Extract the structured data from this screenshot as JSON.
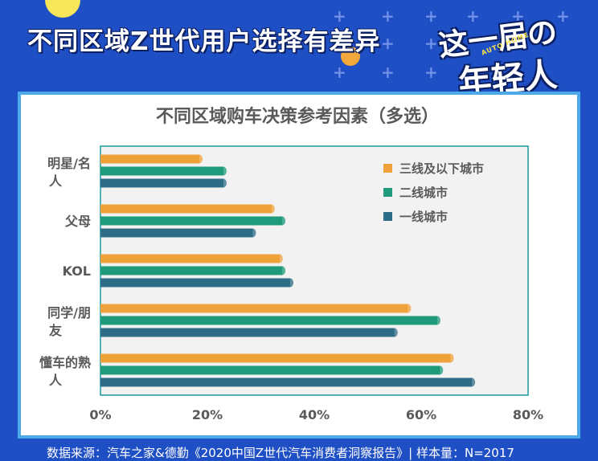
{
  "headline": "不同区域Z世代用户选择有差异",
  "badge": {
    "line1": "这一届の",
    "line2": "年轻人",
    "brand": "AUTO HOME"
  },
  "footer_note": "数据来源：汽车之家&德勤《2020中国Z世代汽车消费者洞察报告》| 样本量：N=2017",
  "colors": {
    "background": "#1f4fc4",
    "card_border": "#4da9e8",
    "plot_bg": "#f2f2f2",
    "series": [
      "#f0a23a",
      "#1f9a7a",
      "#2d6e86"
    ],
    "tick_text": "#595959",
    "title_text": "#595959"
  },
  "chart_data": {
    "type": "bar",
    "orientation": "horizontal",
    "title": "不同区域购车决策参考因素（多选）",
    "categories": [
      "明星/名人",
      "父母",
      "KOL",
      "同学/朋友",
      "懂车的熟人"
    ],
    "series": [
      {
        "name": "三线及以下城市",
        "values": [
          18.5,
          32,
          33.5,
          57.5,
          65.5
        ]
      },
      {
        "name": "二线城市",
        "values": [
          23,
          34,
          34,
          63,
          63.5
        ]
      },
      {
        "name": "一线城市",
        "values": [
          23,
          28.5,
          35.5,
          55,
          69.5
        ]
      }
    ],
    "x_ticks": [
      "0%",
      "20%",
      "40%",
      "60%",
      "80%"
    ],
    "xlim": [
      0,
      80
    ],
    "xlabel": "",
    "ylabel": "",
    "grid": false,
    "legend_position": "top-right"
  }
}
